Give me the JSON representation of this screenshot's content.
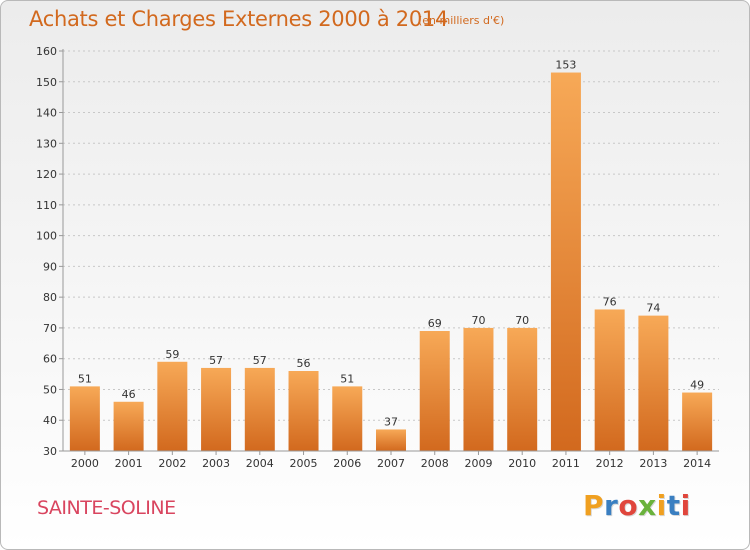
{
  "header": {
    "title": "Achats et Charges Externes 2000 à 2014",
    "subtitle": "(en milliers d'€)"
  },
  "footer": {
    "city": "SAINTE-SOLINE",
    "logo": [
      "P",
      "r",
      "o",
      "x",
      "i",
      "t",
      "i"
    ],
    "logo_colors": [
      "#f0a020",
      "#3a7fc1",
      "#e0463c",
      "#6ab23c",
      "#f0a020",
      "#3a7fc1",
      "#e0463c"
    ]
  },
  "colors": {
    "bar_top": "#f7a957",
    "bar_bottom": "#d2691e",
    "grid": "#c8c8c8",
    "axis": "#999999"
  },
  "chart_data": {
    "type": "bar",
    "title": "Achats et Charges Externes 2000 à 2014",
    "subtitle": "(en milliers d'€)",
    "categories": [
      "2000",
      "2001",
      "2002",
      "2003",
      "2004",
      "2005",
      "2006",
      "2007",
      "2008",
      "2009",
      "2010",
      "2011",
      "2012",
      "2013",
      "2014"
    ],
    "values": [
      51,
      46,
      59,
      57,
      57,
      56,
      51,
      37,
      69,
      70,
      70,
      153,
      76,
      74,
      49
    ],
    "ylim": [
      30,
      160
    ],
    "yticks": [
      30,
      40,
      50,
      60,
      70,
      80,
      90,
      100,
      110,
      120,
      130,
      140,
      150,
      160
    ],
    "grid": true,
    "data_labels": true
  }
}
